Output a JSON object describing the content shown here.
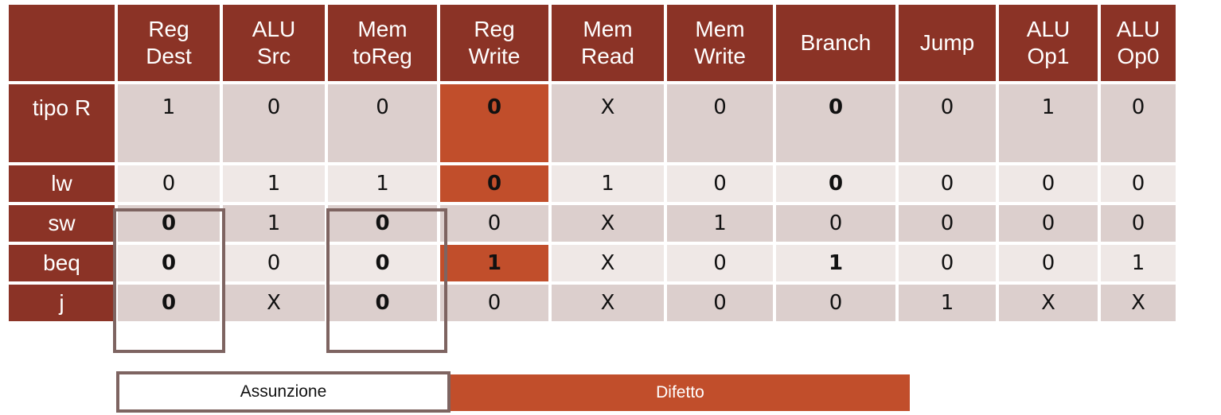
{
  "table": {
    "columns": [
      [
        "Reg",
        "Dest"
      ],
      [
        "ALU",
        "Src"
      ],
      [
        "Mem",
        "toReg"
      ],
      [
        "Reg",
        "Write"
      ],
      [
        "Mem",
        "Read"
      ],
      [
        "Mem",
        "Write"
      ],
      [
        "Branch"
      ],
      [
        "Jump"
      ],
      [
        "ALU",
        "Op1"
      ],
      [
        "ALU",
        "Op0"
      ]
    ],
    "rows": [
      {
        "label": "tipo R",
        "values": [
          "1",
          "0",
          "0",
          "0",
          "X",
          "0",
          "0",
          "0",
          "1",
          "0"
        ]
      },
      {
        "label": "lw",
        "values": [
          "0",
          "1",
          "1",
          "0",
          "1",
          "0",
          "0",
          "0",
          "0",
          "0"
        ]
      },
      {
        "label": "sw",
        "values": [
          "0",
          "1",
          "0",
          "0",
          "X",
          "1",
          "0",
          "0",
          "0",
          "0"
        ]
      },
      {
        "label": "beq",
        "values": [
          "0",
          "0",
          "0",
          "1",
          "X",
          "0",
          "1",
          "0",
          "0",
          "1"
        ]
      },
      {
        "label": "j",
        "values": [
          "0",
          "X",
          "0",
          "0",
          "X",
          "0",
          "0",
          "1",
          "X",
          "X"
        ]
      }
    ]
  },
  "legend": {
    "assunzione": "Assunzione",
    "difetto": "Difetto"
  },
  "colors": {
    "header": "#8b3326",
    "difetto": "#c14e2b",
    "assunzione_border": "#7e6461",
    "row_light": "#efe8e6",
    "row_dark": "#dccfcd"
  }
}
